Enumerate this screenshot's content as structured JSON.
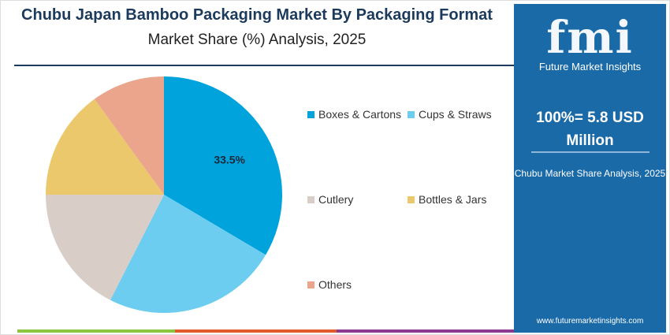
{
  "header": {
    "title": "Chubu Japan Bamboo Packaging Market By Packaging Format",
    "subtitle": "Market Share (%) Analysis, 2025"
  },
  "chart_data": {
    "type": "pie",
    "start": "top",
    "direction": "clockwise",
    "categories": [
      "Boxes & Cartons",
      "Cups & Straws",
      "Cutlery",
      "Bottles & Jars",
      "Others"
    ],
    "values": [
      33.5,
      24,
      17.5,
      15,
      10
    ],
    "colors": [
      "#00a3dc",
      "#6dcdf0",
      "#d9cdc8",
      "#ecc86d",
      "#eba58c"
    ],
    "data_labels": [
      "33.5%",
      "",
      "",
      "",
      ""
    ],
    "legend": "right"
  },
  "panel": {
    "logo": "fmi",
    "logo_sub": "Future Market Insights",
    "total": "100%= 5.8 USD Million",
    "caption": "Chubu Market Share Analysis, 2025",
    "url": "www.futuremarketinsights.com",
    "bg": "#1a6aa8"
  },
  "footer_colors": [
    "#8cc63f",
    "#e05a2b",
    "#8b3a8f"
  ]
}
